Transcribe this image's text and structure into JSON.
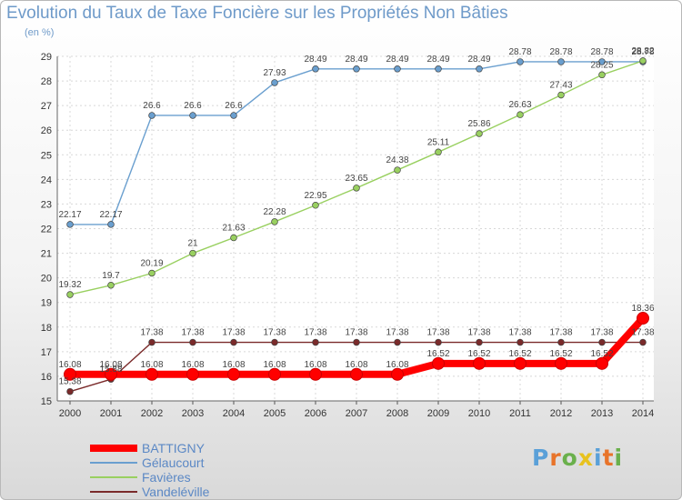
{
  "chart_data": {
    "type": "line",
    "title": "Evolution du Taux de Taxe Foncière sur les Propriétés Non Bâties",
    "unit_label": "(en %)",
    "x": [
      "2000",
      "2001",
      "2002",
      "2003",
      "2004",
      "2005",
      "2006",
      "2007",
      "2008",
      "2009",
      "2010",
      "2011",
      "2012",
      "2013",
      "2014"
    ],
    "ylim": [
      15,
      29
    ],
    "yticks": [
      15,
      16,
      17,
      18,
      19,
      20,
      21,
      22,
      23,
      24,
      25,
      26,
      27,
      28,
      29
    ],
    "grid": true,
    "legend_position": "bottom-left",
    "series": [
      {
        "name": "BATTIGNY",
        "color": "#ff0000",
        "values": [
          16.08,
          16.08,
          16.08,
          16.08,
          16.08,
          16.08,
          16.08,
          16.08,
          16.08,
          16.52,
          16.52,
          16.52,
          16.52,
          16.52,
          18.36
        ],
        "labels": [
          "16.08",
          "16.08",
          "16.08",
          "16.08",
          "16.08",
          "16.08",
          "16.08",
          "16.08",
          "16.08",
          "16.52",
          "16.52",
          "16.52",
          "16.52",
          "16.52",
          "18.36"
        ]
      },
      {
        "name": "Gélaucourt",
        "color": "#6a9fcf",
        "values": [
          22.17,
          22.17,
          26.6,
          26.6,
          26.6,
          27.93,
          28.49,
          28.49,
          28.49,
          28.49,
          28.49,
          28.78,
          28.78,
          28.78,
          28.78
        ],
        "labels": [
          "22.17",
          "22.17",
          "26.6",
          "26.6",
          "26.6",
          "27.93",
          "28.49",
          "28.49",
          "28.49",
          "28.49",
          "28.49",
          "28.78",
          "28.78",
          "28.78",
          "28.78"
        ]
      },
      {
        "name": "Favières",
        "color": "#99d060",
        "values": [
          19.32,
          19.7,
          20.19,
          21,
          21.63,
          22.28,
          22.95,
          23.65,
          24.38,
          25.11,
          25.86,
          26.63,
          27.43,
          28.25,
          28.82
        ],
        "labels": [
          "19.32",
          "19.7",
          "20.19",
          "21",
          "21.63",
          "22.28",
          "22.95",
          "23.65",
          "24.38",
          "25.11",
          "25.86",
          "26.63",
          "27.43",
          "28.25",
          "28.82"
        ]
      },
      {
        "name": "Vandeléville",
        "color": "#7a2a2a",
        "values": [
          15.38,
          15.88,
          17.38,
          17.38,
          17.38,
          17.38,
          17.38,
          17.38,
          17.38,
          17.38,
          17.38,
          17.38,
          17.38,
          17.38,
          17.38
        ],
        "labels": [
          "15.38",
          "15.88",
          "17.38",
          "17.38",
          "17.38",
          "17.38",
          "17.38",
          "17.38",
          "17.38",
          "17.38",
          "17.38",
          "17.38",
          "17.38",
          "17.38",
          "17.38"
        ]
      }
    ]
  },
  "logo": {
    "text": "Proxiti",
    "colors": [
      "#5aa0d8",
      "#e8742a",
      "#6ab04c",
      "#e8c21e",
      "#5aa0d8",
      "#e8742a",
      "#6ab04c"
    ]
  }
}
